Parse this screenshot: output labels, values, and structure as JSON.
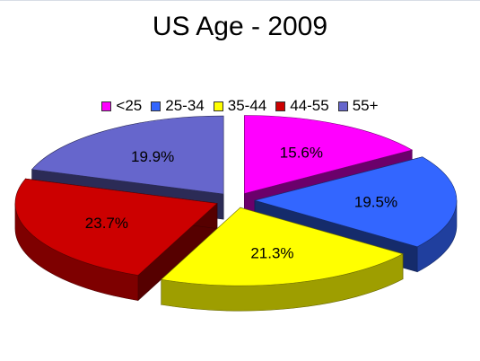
{
  "chart_data": {
    "type": "pie",
    "title": "US Age - 2009",
    "categories": [
      "<25",
      "25-34",
      "35-44",
      "44-55",
      "55+"
    ],
    "values": [
      15.6,
      19.5,
      21.3,
      23.7,
      19.9
    ],
    "value_labels": [
      "15.6%",
      "19.5%",
      "21.3%",
      "23.7%",
      "19.9%"
    ],
    "colors": [
      "#ff00ff",
      "#3366ff",
      "#ffff00",
      "#cc0000",
      "#6666cc"
    ],
    "style": "3d-exploded",
    "legend_position": "top"
  }
}
